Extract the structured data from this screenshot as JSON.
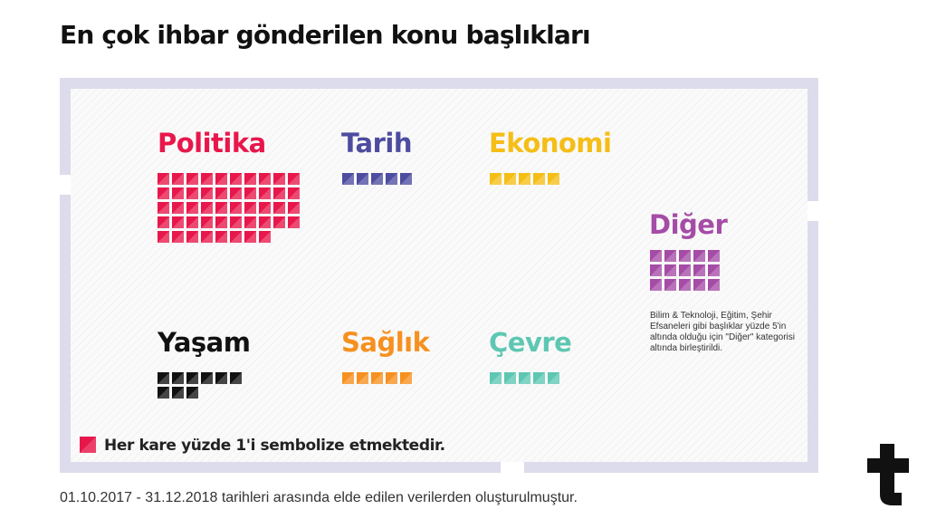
{
  "title": "En çok ihbar gönderilen konu başlıkları",
  "chart_data": {
    "type": "waffle",
    "unit_note": "Her kare yüzde 1'i sembolize etmektedir.",
    "categories": [
      "Politika",
      "Tarih",
      "Ekonomi",
      "Yaşam",
      "Sağlık",
      "Çevre",
      "Diğer"
    ],
    "values": [
      48,
      5,
      5,
      9,
      5,
      5,
      15
    ],
    "colors": [
      "#e8174b",
      "#4d4ca0",
      "#f5be16",
      "#111111",
      "#f6901f",
      "#5ec7b2",
      "#a54ca6"
    ],
    "per_row": [
      10,
      5,
      5,
      6,
      5,
      5,
      5
    ],
    "legend_color": "#e8174b"
  },
  "note": "Bilim & Teknoloji, Eğitim, Şehir Efsaneleri gibi başlıklar yüzde 5'in altında olduğu için \"Diğer\" kategorisi altında birleştirildi.",
  "source": "01.10.2017 - 31.12.2018 tarihleri arasında elde edilen verilerden oluşturulmuştur.",
  "logo": {
    "name": "teyit-logo",
    "color": "#111111"
  }
}
